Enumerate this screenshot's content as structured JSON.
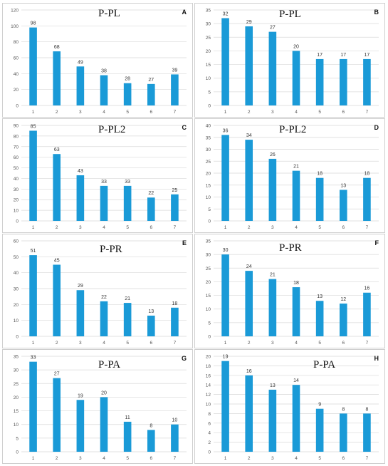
{
  "figure": {
    "background": "#ffffff",
    "bar_color": "#1a9ad7",
    "grid_color": "#d9d9d9"
  },
  "chart_data": [
    {
      "id": "A",
      "type": "bar",
      "title": "P-PL",
      "letter": "A",
      "categories": [
        "1",
        "2",
        "3",
        "4",
        "5",
        "6",
        "7"
      ],
      "values": [
        98,
        68,
        49,
        38,
        28,
        27,
        39
      ],
      "ylim": [
        0,
        120
      ],
      "yticks": [
        0,
        20,
        40,
        60,
        80,
        100,
        120
      ],
      "grid": true,
      "xlabel": "",
      "ylabel": ""
    },
    {
      "id": "B",
      "type": "bar",
      "title": "P-PL",
      "letter": "B",
      "categories": [
        "1",
        "2",
        "3",
        "4",
        "5",
        "6",
        "7"
      ],
      "values": [
        32,
        29,
        27,
        20,
        17,
        17,
        17
      ],
      "ylim": [
        0,
        35
      ],
      "yticks": [
        0,
        5,
        10,
        15,
        20,
        25,
        30,
        35
      ],
      "grid": true,
      "xlabel": "",
      "ylabel": ""
    },
    {
      "id": "C",
      "type": "bar",
      "title": "P-PL2",
      "letter": "C",
      "categories": [
        "1",
        "2",
        "3",
        "4",
        "5",
        "6",
        "7"
      ],
      "values": [
        85,
        63,
        43,
        33,
        33,
        22,
        25
      ],
      "ylim": [
        0,
        90
      ],
      "yticks": [
        0,
        10,
        20,
        30,
        40,
        50,
        60,
        70,
        80,
        90
      ],
      "grid": true,
      "xlabel": "",
      "ylabel": ""
    },
    {
      "id": "D",
      "type": "bar",
      "title": "P-PL2",
      "letter": "D",
      "categories": [
        "1",
        "2",
        "3",
        "4",
        "5",
        "6",
        "7"
      ],
      "values": [
        36,
        34,
        26,
        21,
        18,
        13,
        18
      ],
      "ylim": [
        0,
        40
      ],
      "yticks": [
        0,
        5,
        10,
        15,
        20,
        25,
        30,
        35,
        40
      ],
      "grid": true,
      "xlabel": "",
      "ylabel": ""
    },
    {
      "id": "E",
      "type": "bar",
      "title": "P-PR",
      "letter": "E",
      "categories": [
        "1",
        "2",
        "3",
        "4",
        "5",
        "6",
        "7"
      ],
      "values": [
        51,
        45,
        29,
        22,
        21,
        13,
        18
      ],
      "ylim": [
        0,
        60
      ],
      "yticks": [
        0,
        10,
        20,
        30,
        40,
        50,
        60
      ],
      "grid": true,
      "xlabel": "",
      "ylabel": ""
    },
    {
      "id": "F",
      "type": "bar",
      "title": "P-PR",
      "letter": "F",
      "categories": [
        "1",
        "2",
        "3",
        "4",
        "5",
        "6",
        "7"
      ],
      "values": [
        30,
        24,
        21,
        18,
        13,
        12,
        16
      ],
      "ylim": [
        0,
        35
      ],
      "yticks": [
        0,
        5,
        10,
        15,
        20,
        25,
        30,
        35
      ],
      "grid": true,
      "xlabel": "",
      "ylabel": ""
    },
    {
      "id": "G",
      "type": "bar",
      "title": "P-PA",
      "letter": "G",
      "categories": [
        "1",
        "2",
        "3",
        "4",
        "5",
        "6",
        "7"
      ],
      "values": [
        33,
        27,
        19,
        20,
        11,
        8,
        10
      ],
      "ylim": [
        0,
        35
      ],
      "yticks": [
        0,
        5,
        10,
        15,
        20,
        25,
        30,
        35
      ],
      "grid": true,
      "xlabel": "",
      "ylabel": ""
    },
    {
      "id": "H",
      "type": "bar",
      "title": "P-PA",
      "letter": "H",
      "categories": [
        "1",
        "2",
        "3",
        "4",
        "5",
        "6",
        "7"
      ],
      "values": [
        19,
        16,
        13,
        14,
        9,
        8,
        8
      ],
      "ylim": [
        0,
        20
      ],
      "yticks": [
        0,
        2,
        4,
        6,
        8,
        10,
        12,
        14,
        16,
        18,
        20
      ],
      "grid": true,
      "xlabel": "",
      "ylabel": ""
    }
  ]
}
